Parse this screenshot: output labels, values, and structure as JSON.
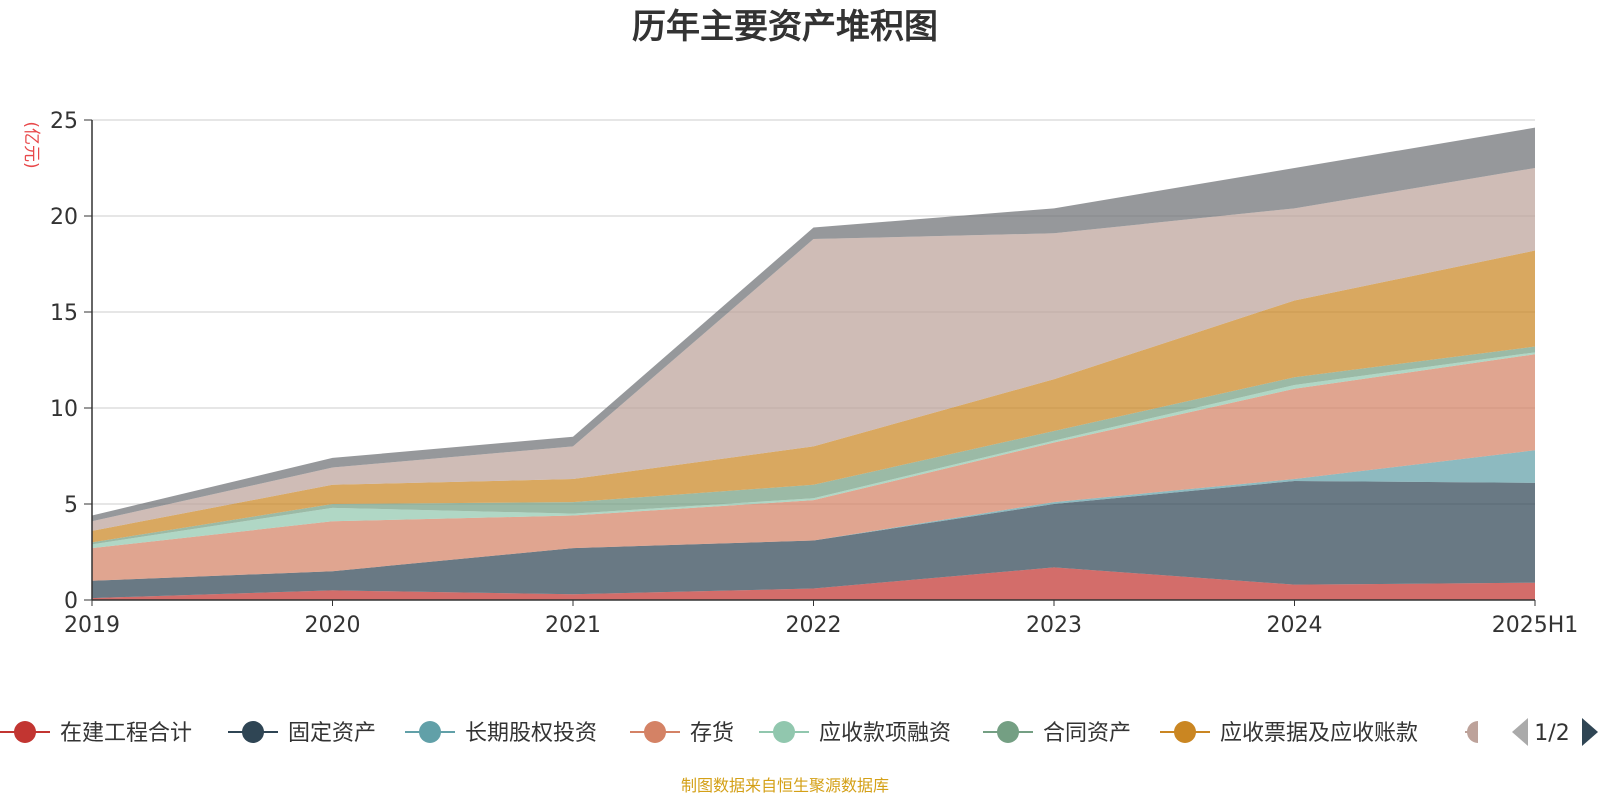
{
  "chart_data": {
    "type": "area",
    "stacked": true,
    "title": "历年主要资产堆积图",
    "ylabel": "(亿元)",
    "categories": [
      "2019",
      "2020",
      "2021",
      "2022",
      "2023",
      "2024",
      "2025H1"
    ],
    "ylim": [
      0,
      25
    ],
    "yticks": [
      0,
      5,
      10,
      15,
      20,
      25
    ],
    "grid": true,
    "series": [
      {
        "name": "在建工程合计",
        "color": "#c23531",
        "values": [
          0.1,
          0.5,
          0.3,
          0.6,
          1.7,
          0.8,
          0.9
        ]
      },
      {
        "name": "固定资产",
        "color": "#2f4554",
        "values": [
          0.9,
          1.0,
          2.4,
          2.5,
          3.3,
          5.4,
          5.2
        ]
      },
      {
        "name": "长期股权投资",
        "color": "#61a0a8",
        "values": [
          0.0,
          0.0,
          0.0,
          0.0,
          0.1,
          0.1,
          1.7
        ]
      },
      {
        "name": "存货",
        "color": "#d48265",
        "values": [
          1.7,
          2.6,
          1.7,
          2.1,
          3.1,
          4.7,
          5.0
        ]
      },
      {
        "name": "应收款项融资",
        "color": "#91c7ae",
        "values": [
          0.2,
          0.7,
          0.1,
          0.1,
          0.1,
          0.2,
          0.1
        ]
      },
      {
        "name": "合同资产",
        "color": "#749f83",
        "values": [
          0.1,
          0.2,
          0.6,
          0.7,
          0.5,
          0.4,
          0.3
        ]
      },
      {
        "name": "应收票据及应收账款",
        "color": "#ca8622",
        "values": [
          0.6,
          1.0,
          1.2,
          2.0,
          2.7,
          4.0,
          5.0
        ]
      },
      {
        "name": "",
        "color": "#bda29a",
        "values": [
          0.5,
          0.9,
          1.7,
          10.8,
          7.6,
          4.8,
          4.3
        ]
      },
      {
        "name": "",
        "color": "#6e7074",
        "values": [
          0.3,
          0.5,
          0.5,
          0.6,
          1.3,
          2.1,
          2.1
        ]
      }
    ],
    "legend": {
      "placement": "bottom",
      "page": "1/2"
    }
  },
  "footer": "制图数据来自恒生聚源数据库"
}
